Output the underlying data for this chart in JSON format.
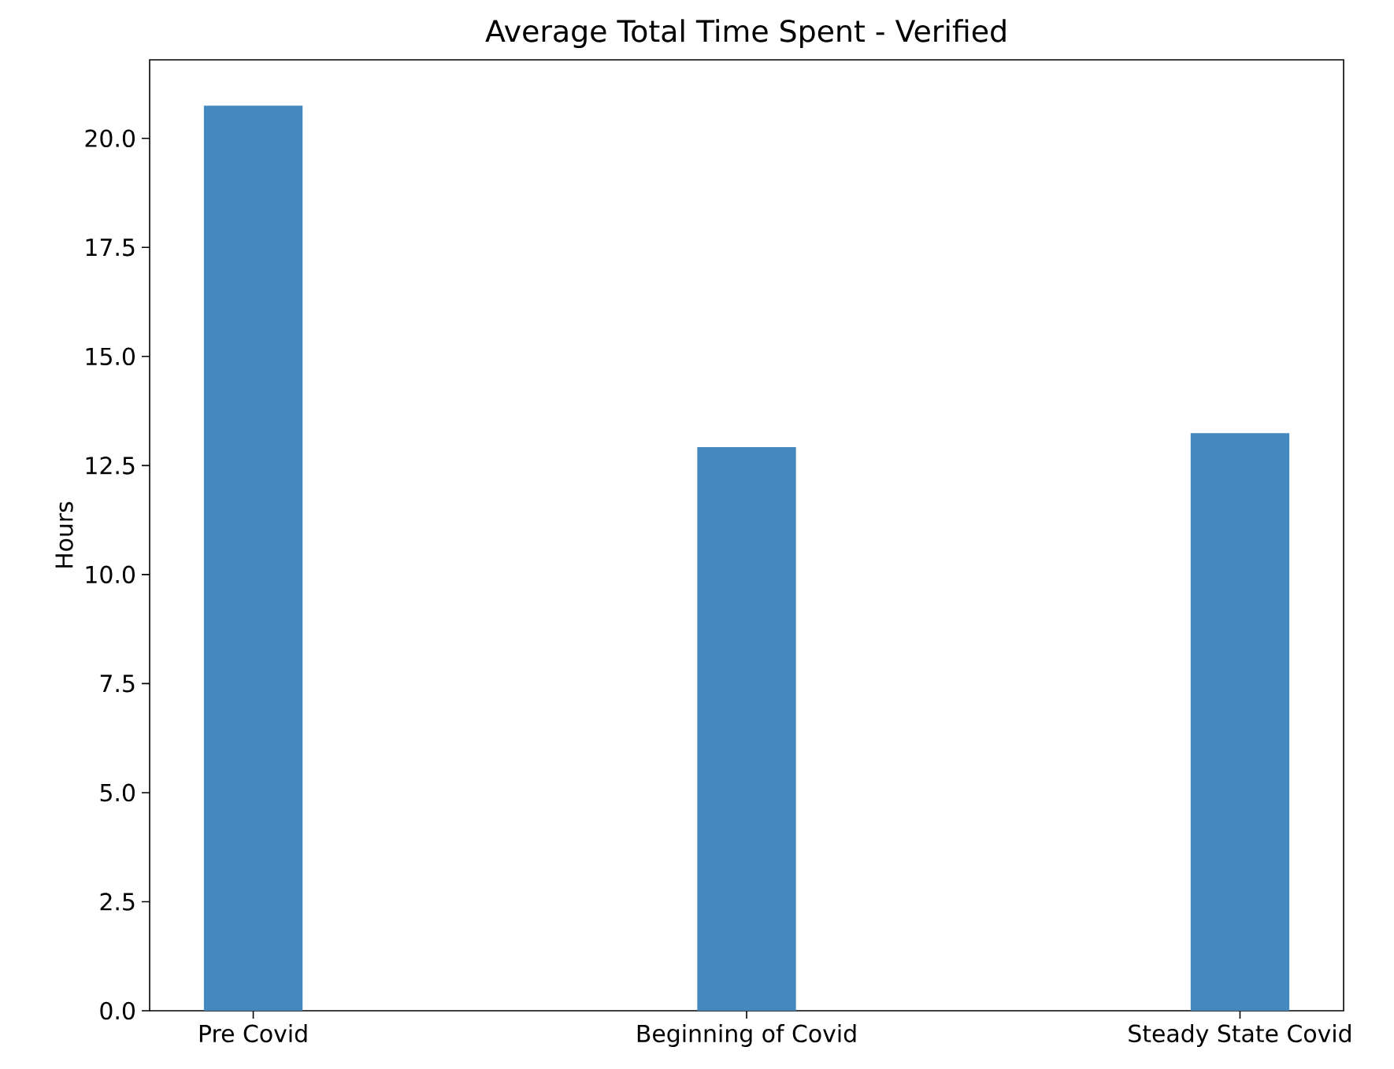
{
  "chart_data": {
    "type": "bar",
    "title": "Average Total Time Spent - Verified",
    "ylabel": "Hours",
    "categories": [
      "Pre Covid",
      "Beginning of Covid",
      "Steady State Covid"
    ],
    "values": [
      20.75,
      12.92,
      13.24
    ],
    "color": "#4388be",
    "ylim": [
      0,
      21.8
    ],
    "yticks": [
      {
        "value": 0,
        "label": "0.0"
      },
      {
        "value": 2.5,
        "label": "2.5"
      },
      {
        "value": 5,
        "label": "5.0"
      },
      {
        "value": 7.5,
        "label": "7.5"
      },
      {
        "value": 10,
        "label": "10.0"
      },
      {
        "value": 12.5,
        "label": "12.5"
      },
      {
        "value": 15,
        "label": "15.0"
      },
      {
        "value": 17.5,
        "label": "17.5"
      },
      {
        "value": 20,
        "label": "20.0"
      }
    ]
  }
}
